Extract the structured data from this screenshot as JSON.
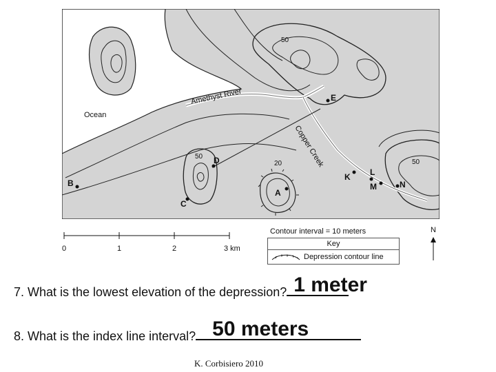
{
  "map": {
    "labels": {
      "ocean": "Ocean",
      "river": "Amethyst River",
      "creek": "Copper Creek"
    },
    "elevations": [
      "50",
      "50",
      "20",
      "50"
    ],
    "points": [
      "A",
      "B",
      "C",
      "D",
      "E",
      "K",
      "L",
      "M",
      "N"
    ],
    "colors": {
      "land": "#d4d4d4",
      "water": "#ffffff",
      "contour": "#222222"
    }
  },
  "scale": {
    "ticks": [
      "0",
      "1",
      "2",
      "3 km"
    ]
  },
  "legend": {
    "contour_interval": "Contour interval = 10 meters",
    "key_title": "Key",
    "key_item": "Depression contour line"
  },
  "north": {
    "letter": "N"
  },
  "questions": [
    {
      "text": "7.  What is the lowest elevation of the depression? ",
      "answer": "1 meter"
    },
    {
      "text": "8.  What is the index line interval? ",
      "answer": "50 meters"
    }
  ],
  "credit": "K. Corbisiero 2010"
}
